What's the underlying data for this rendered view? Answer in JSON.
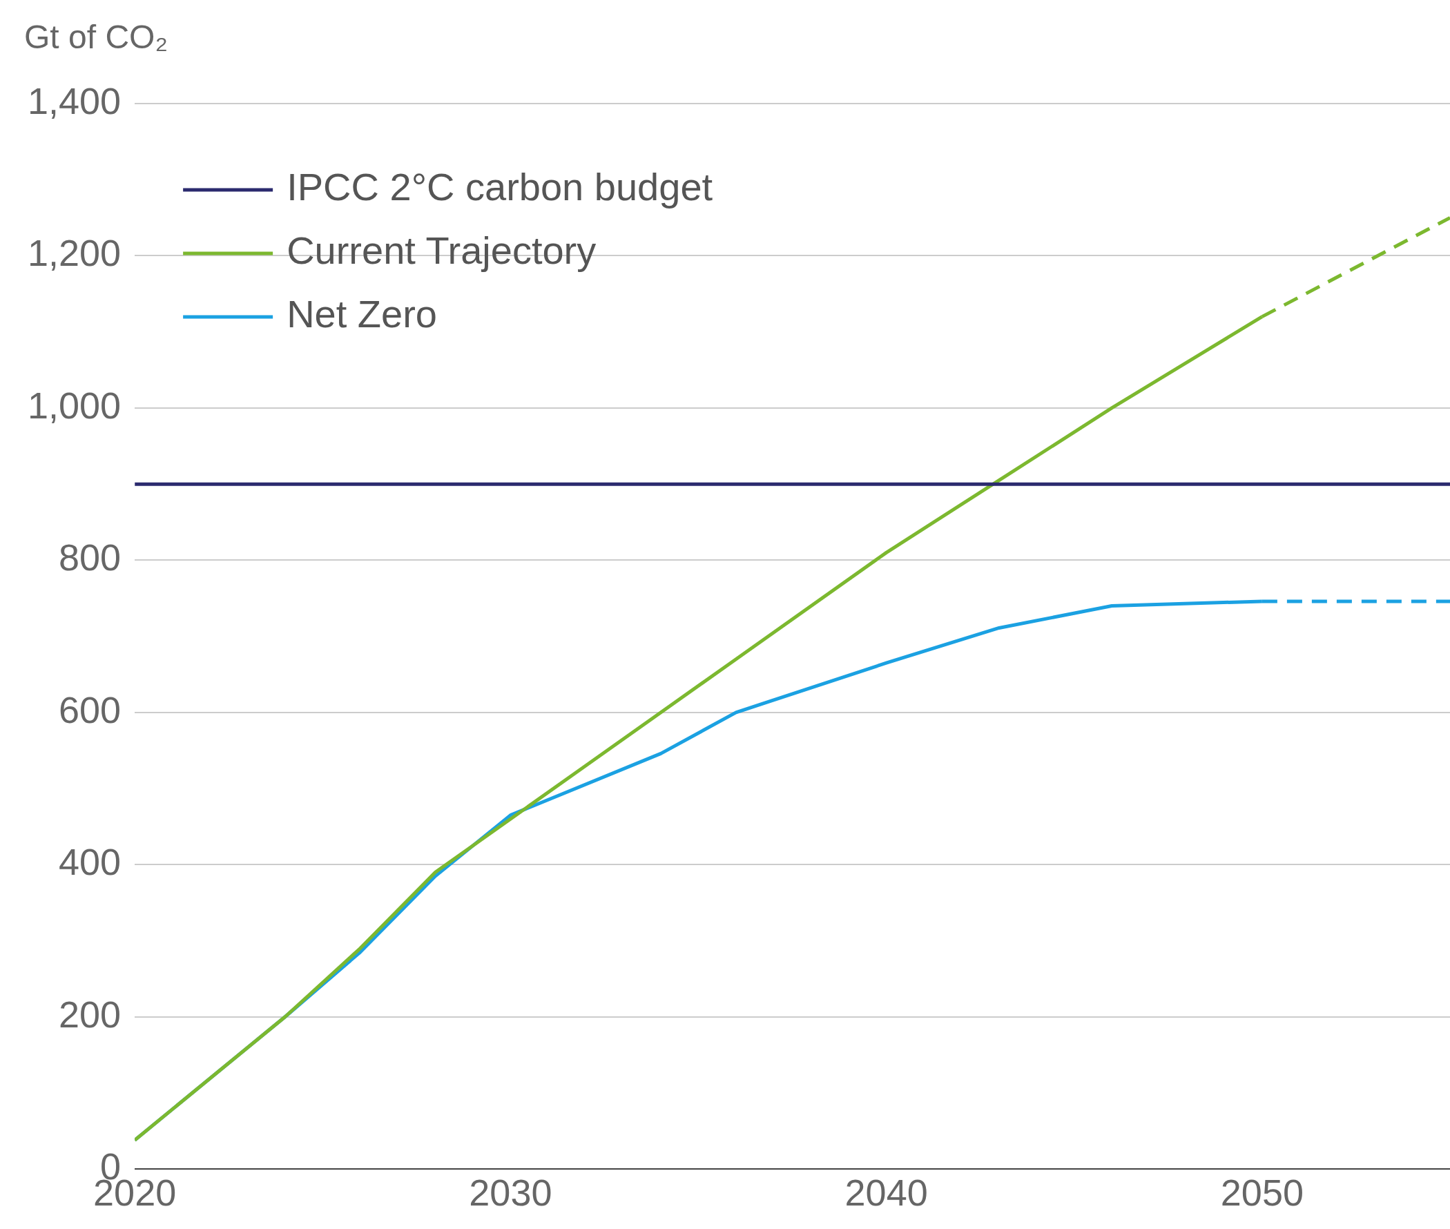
{
  "chart_data": {
    "type": "line",
    "ylabel": "Gt of CO₂",
    "xlim": [
      2020,
      2055
    ],
    "xticks": [
      2020,
      2030,
      2040,
      2050
    ],
    "ylim": [
      0,
      1400
    ],
    "yticks": [
      0,
      200,
      400,
      600,
      800,
      {
        "value": 1000,
        "label": "1,000"
      },
      {
        "value": 1200,
        "label": "1,200"
      },
      {
        "value": 1400,
        "label": "1,400"
      }
    ],
    "grid": "y",
    "legend": "top left",
    "marker": "none",
    "series": [
      {
        "name": "IPCC 2°C carbon budget",
        "color": "#2b2a6e",
        "x": [
          2020,
          2055
        ],
        "values": [
          900,
          900
        ]
      },
      {
        "name": "Current Trajectory",
        "color": "#7cb82f",
        "x": [
          2020,
          2024,
          2026,
          2028,
          2032,
          2036,
          2040,
          2043,
          2046,
          2050
        ],
        "values": [
          38,
          200,
          290,
          390,
          530,
          670,
          810,
          905,
          1000,
          1120
        ]
      },
      {
        "name": "Net Zero",
        "color": "#1ba1e2",
        "x": [
          2020,
          2024,
          2026,
          2028,
          2030,
          2034,
          2036,
          2040,
          2043,
          2046,
          2050
        ],
        "values": [
          38,
          200,
          285,
          385,
          465,
          546,
          600,
          665,
          711,
          740,
          746
        ]
      },
      {
        "color": "#7cb82f",
        "line_style": "dashed",
        "x": [
          2050,
          2055
        ],
        "values": [
          1120,
          1250
        ]
      },
      {
        "color": "#1ba1e2",
        "line_style": "dashed",
        "x": [
          2050,
          2055
        ],
        "values": [
          746,
          746
        ]
      }
    ]
  }
}
